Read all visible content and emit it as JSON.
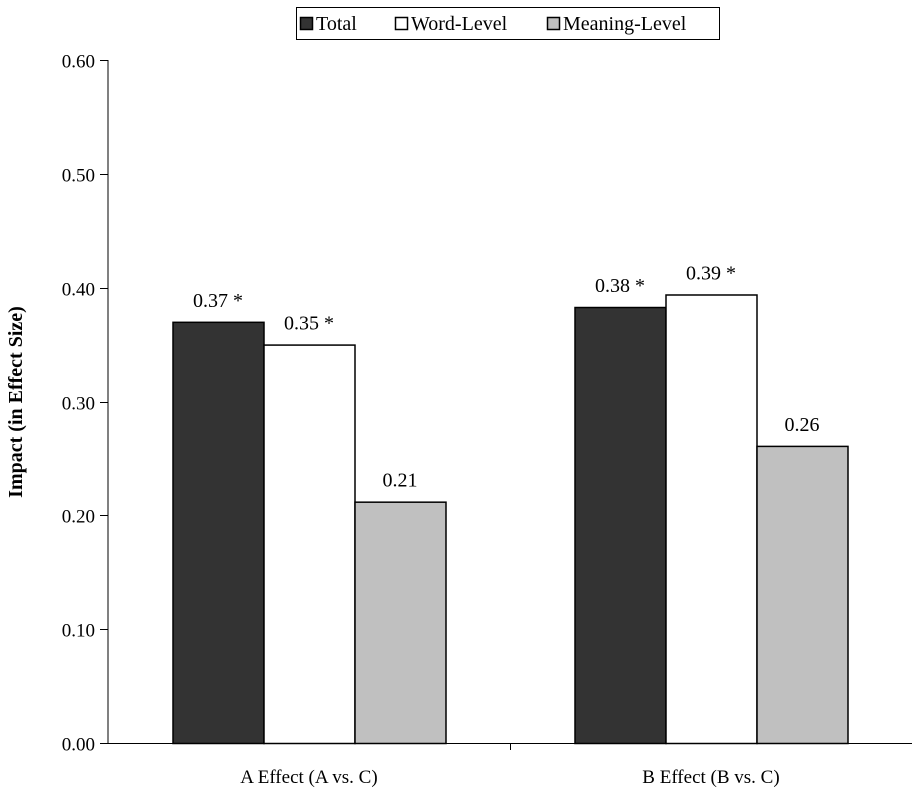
{
  "chart_data": {
    "type": "bar",
    "title": "",
    "xlabel": "",
    "ylabel": "Impact (in Effect Size)",
    "categories": [
      "A Effect (A vs. C)",
      "B Effect (B vs. C)"
    ],
    "series": [
      {
        "name": "Total",
        "color": "#333333",
        "values": [
          0.37,
          0.383
        ],
        "labels": [
          "0.37 *",
          "0.38 *"
        ]
      },
      {
        "name": "Word-Level",
        "color": "#ffffff",
        "values": [
          0.35,
          0.394
        ],
        "labels": [
          "0.35 *",
          "0.39 *"
        ]
      },
      {
        "name": "Meaning-Level",
        "color": "#c0c0c0",
        "values": [
          0.212,
          0.261
        ],
        "labels": [
          "0.21",
          "0.26"
        ]
      }
    ],
    "ylim": [
      0,
      0.6
    ],
    "yticks": [
      0.0,
      0.1,
      0.2,
      0.3,
      0.4,
      0.5,
      0.6
    ],
    "ytick_labels": [
      "0.00",
      "0.10",
      "0.20",
      "0.30",
      "0.40",
      "0.50",
      "0.60"
    ],
    "grid": false,
    "legend_position": "top-center"
  }
}
